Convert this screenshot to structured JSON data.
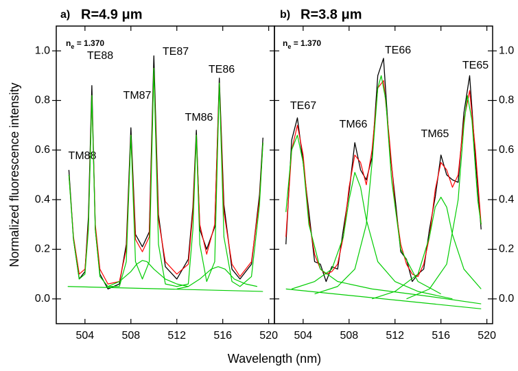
{
  "figure": {
    "xlabel": "Wavelength   (nm)",
    "ylabel": "Normalized fluorescence intensity"
  },
  "chart_data": [
    {
      "type": "line",
      "panel": "a)",
      "title": "R=4.9 μm",
      "ne_label": {
        "symbol": "n",
        "subscript": "e",
        "text": " = 1.370"
      },
      "annotations": [
        "TM88",
        "TE88",
        "TM87",
        "TE87",
        "TM86",
        "TE86"
      ],
      "xlim": [
        501.5,
        520.5
      ],
      "xticks": [
        504,
        508,
        512,
        516,
        520
      ],
      "ylim": [
        -0.1,
        1.1
      ],
      "yticks": [
        {
          "value": 0,
          "label": "0.0"
        },
        {
          "value": 0.2,
          "label": "0.2"
        },
        {
          "value": 0.4,
          "label": "0.4"
        },
        {
          "value": 0.6,
          "label": "0.6"
        },
        {
          "value": 0.8,
          "label": "0.8"
        },
        {
          "value": 1,
          "label": "1.0"
        }
      ],
      "ytick_side": "left",
      "series": [
        {
          "color": "#000000",
          "x": [
            502.6,
            503.0,
            503.5,
            504.0,
            504.3,
            504.6,
            504.9,
            505.3,
            506,
            507,
            507.6,
            508.0,
            508.4,
            509,
            509.6,
            510.0,
            510.4,
            511,
            512,
            513,
            513.4,
            513.7,
            514.0,
            514.6,
            515.3,
            515.7,
            516.1,
            516.8,
            517.5,
            518.5,
            519.2,
            519.5
          ],
          "values": [
            0.52,
            0.24,
            0.08,
            0.11,
            0.33,
            0.86,
            0.28,
            0.1,
            0.04,
            0.06,
            0.22,
            0.69,
            0.26,
            0.21,
            0.27,
            0.98,
            0.34,
            0.13,
            0.08,
            0.16,
            0.37,
            0.68,
            0.28,
            0.2,
            0.29,
            0.89,
            0.38,
            0.12,
            0.08,
            0.14,
            0.42,
            0.65
          ]
        },
        {
          "color": "#ff0000",
          "x": [
            502.6,
            503.0,
            503.5,
            504.0,
            504.3,
            504.6,
            504.9,
            505.3,
            506,
            507,
            507.6,
            508.0,
            508.4,
            509,
            509.6,
            510.0,
            510.4,
            511,
            512,
            513,
            513.4,
            513.7,
            514.0,
            514.6,
            515.3,
            515.7,
            516.1,
            516.8,
            517.5,
            518.5,
            519.2,
            519.5
          ],
          "values": [
            0.5,
            0.25,
            0.1,
            0.12,
            0.3,
            0.82,
            0.3,
            0.12,
            0.06,
            0.07,
            0.2,
            0.66,
            0.24,
            0.19,
            0.25,
            0.93,
            0.32,
            0.15,
            0.1,
            0.14,
            0.35,
            0.66,
            0.3,
            0.18,
            0.3,
            0.87,
            0.35,
            0.14,
            0.09,
            0.15,
            0.4,
            0.63
          ]
        },
        {
          "color": "#00cc00",
          "x": [
            502.6,
            503.0,
            503.5,
            504.0,
            504.3,
            504.6,
            504.9,
            505.3,
            506,
            507,
            507.6,
            508.0,
            508.4,
            509,
            509.6,
            510.0,
            510.4,
            511,
            512,
            513,
            513.4,
            513.7,
            514.0,
            514.6,
            515.3,
            515.7,
            516.1,
            516.8,
            517.5,
            518.5,
            519.2,
            519.5
          ],
          "values": [
            0.5,
            0.24,
            0.08,
            0.1,
            0.28,
            0.82,
            0.28,
            0.09,
            0.05,
            0.05,
            0.15,
            0.66,
            0.15,
            0.08,
            0.15,
            0.93,
            0.22,
            0.06,
            0.05,
            0.06,
            0.28,
            0.66,
            0.22,
            0.07,
            0.15,
            0.87,
            0.25,
            0.07,
            0.05,
            0.09,
            0.38,
            0.63
          ]
        },
        {
          "color": "#00cc00",
          "x": [
            506,
            507,
            508,
            508.5,
            509,
            509.4,
            510,
            511,
            512,
            513
          ],
          "values": [
            0.05,
            0.07,
            0.11,
            0.14,
            0.155,
            0.15,
            0.12,
            0.08,
            0.06,
            0.05
          ]
        },
        {
          "color": "#00cc00",
          "x": [
            512,
            513,
            514,
            515,
            515.6,
            516.2,
            517,
            518,
            519
          ],
          "values": [
            0.04,
            0.05,
            0.08,
            0.12,
            0.13,
            0.12,
            0.08,
            0.06,
            0.05
          ]
        },
        {
          "color": "#00cc00",
          "x": [
            502.5,
            519.5
          ],
          "values": [
            0.05,
            0.03
          ]
        }
      ]
    },
    {
      "type": "line",
      "panel": "b)",
      "title": "R=3.8 μm",
      "ne_label": {
        "symbol": "n",
        "subscript": "e",
        "text": " = 1.370"
      },
      "annotations": [
        "TE67",
        "TM66",
        "TE66",
        "TM65",
        "TE65"
      ],
      "xlim": [
        501.5,
        520.5
      ],
      "xticks": [
        504,
        508,
        512,
        516,
        520
      ],
      "ylim": [
        -0.1,
        1.1
      ],
      "yticks": [
        {
          "value": 0,
          "label": "0.0"
        },
        {
          "value": 0.2,
          "label": "0.2"
        },
        {
          "value": 0.4,
          "label": "0.4"
        },
        {
          "value": 0.6,
          "label": "0.6"
        },
        {
          "value": 0.8,
          "label": "0.8"
        },
        {
          "value": 1,
          "label": "1.0"
        }
      ],
      "ytick_side": "right",
      "series": [
        {
          "color": "#000000",
          "x": [
            502.5,
            503,
            503.5,
            504,
            504.5,
            505,
            505.5,
            506,
            506.5,
            507,
            507.5,
            508,
            508.5,
            509,
            509.5,
            510,
            510.5,
            511,
            511.5,
            512,
            512.5,
            513,
            513.5,
            514,
            514.5,
            515,
            515.5,
            516,
            516.5,
            517,
            517.5,
            518,
            518.5,
            519,
            519.5
          ],
          "values": [
            0.22,
            0.64,
            0.73,
            0.55,
            0.35,
            0.15,
            0.14,
            0.07,
            0.13,
            0.12,
            0.28,
            0.43,
            0.63,
            0.52,
            0.48,
            0.57,
            0.9,
            0.97,
            0.62,
            0.41,
            0.19,
            0.16,
            0.07,
            0.1,
            0.12,
            0.28,
            0.41,
            0.58,
            0.5,
            0.48,
            0.47,
            0.75,
            0.9,
            0.57,
            0.28
          ]
        },
        {
          "color": "#ff0000",
          "x": [
            502.5,
            503,
            503.5,
            504,
            504.5,
            505,
            505.5,
            506,
            506.5,
            507,
            507.5,
            508,
            508.5,
            509,
            509.5,
            510,
            510.5,
            511,
            511.5,
            512,
            512.5,
            513,
            513.5,
            514,
            514.5,
            515,
            515.5,
            516,
            516.5,
            517,
            517.5,
            518,
            518.5,
            519,
            519.5
          ],
          "values": [
            0.25,
            0.6,
            0.7,
            0.58,
            0.32,
            0.18,
            0.12,
            0.1,
            0.11,
            0.14,
            0.25,
            0.45,
            0.58,
            0.55,
            0.46,
            0.6,
            0.85,
            0.88,
            0.65,
            0.38,
            0.22,
            0.14,
            0.1,
            0.09,
            0.14,
            0.25,
            0.44,
            0.55,
            0.52,
            0.45,
            0.5,
            0.72,
            0.84,
            0.6,
            0.3
          ]
        },
        {
          "color": "#00cc00",
          "x": [
            502.5,
            503,
            503.5,
            504,
            504.5,
            505.5,
            507,
            510,
            515,
            519.5
          ],
          "values": [
            0.35,
            0.6,
            0.66,
            0.55,
            0.3,
            0.12,
            0.07,
            0.04,
            0.01,
            -0.02
          ]
        },
        {
          "color": "#00cc00",
          "x": [
            503,
            505,
            506.5,
            507.5,
            508,
            508.5,
            509,
            509.5,
            510.5,
            512,
            514,
            517
          ],
          "values": [
            0.04,
            0.07,
            0.12,
            0.25,
            0.4,
            0.51,
            0.45,
            0.32,
            0.15,
            0.07,
            0.03,
            0.0
          ]
        },
        {
          "color": "#00cc00",
          "x": [
            505,
            507,
            508.5,
            509.5,
            510,
            510.5,
            510.8,
            511.2,
            511.7,
            512.5,
            514,
            516
          ],
          "values": [
            0.02,
            0.05,
            0.12,
            0.3,
            0.55,
            0.85,
            0.9,
            0.8,
            0.48,
            0.2,
            0.07,
            0.02
          ]
        },
        {
          "color": "#00cc00",
          "x": [
            510,
            512,
            514,
            515,
            515.5,
            516,
            516.5,
            517,
            518,
            519.5
          ],
          "values": [
            0.0,
            0.03,
            0.1,
            0.25,
            0.37,
            0.41,
            0.37,
            0.26,
            0.12,
            0.04
          ]
        },
        {
          "color": "#00cc00",
          "x": [
            513,
            515,
            516.5,
            517.5,
            518,
            518.3,
            518.7,
            519.2,
            519.5
          ],
          "values": [
            0.0,
            0.04,
            0.14,
            0.4,
            0.7,
            0.82,
            0.72,
            0.4,
            0.3
          ]
        },
        {
          "color": "#00cc00",
          "x": [
            502.5,
            519.5
          ],
          "values": [
            0.04,
            -0.04
          ]
        }
      ]
    }
  ]
}
